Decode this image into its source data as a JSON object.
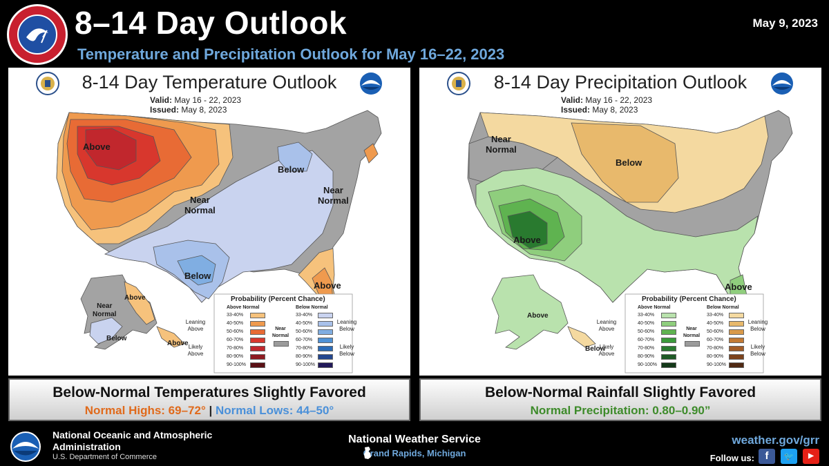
{
  "header": {
    "title": "8–14 Day Outlook",
    "subtitle": "Temperature and Precipitation Outlook for May 16–22, 2023",
    "date": "May 9, 2023",
    "logo_text": "NATIONAL WEATHER SERVICE"
  },
  "temp_map": {
    "title": "8-14 Day Temperature Outlook",
    "valid_label": "Valid:",
    "valid_value": "May 16 - 22, 2023",
    "issued_label": "Issued:",
    "issued_value": "May 8, 2023",
    "labels": {
      "above_west": "Above",
      "below_ne": "Below",
      "near_normal_center": "Near\nNormal",
      "near_normal_east": "Near\nNormal",
      "below_tx": "Below",
      "above_fl": "Above",
      "ak_above": "Above",
      "ak_near_normal": "Near\nNormal",
      "ak_below": "Below",
      "ak_above_se": "Above"
    },
    "legend": {
      "title": "Probability (Percent Chance)",
      "above_header": "Above Normal",
      "below_header": "Below Normal",
      "near_normal": "Near\nNormal",
      "leaning_above": "Leaning\nAbove",
      "likely_above": "Likely\nAbove",
      "leaning_below": "Leaning\nBelow",
      "likely_below": "Likely\nBelow",
      "ranges": [
        "33-40%",
        "40-50%",
        "50-60%",
        "60-70%",
        "70-80%",
        "80-90%",
        "90-100%"
      ],
      "above_colors": [
        "#f6c27c",
        "#ef9a4e",
        "#e86b35",
        "#d8372d",
        "#c1272d",
        "#8e1b21",
        "#5a1015"
      ],
      "below_colors": [
        "#c9d3ef",
        "#a9c1ea",
        "#80aee2",
        "#4f92d6",
        "#2b6cb8",
        "#24478f",
        "#221a5a"
      ],
      "near_color": "#9b9b9b"
    }
  },
  "precip_map": {
    "title": "8-14 Day Precipitation Outlook",
    "valid_label": "Valid:",
    "valid_value": "May 16 - 22, 2023",
    "issued_label": "Issued:",
    "issued_value": "May 8, 2023",
    "labels": {
      "near_normal_nw": "Near\nNormal",
      "below_north": "Below",
      "above_sw": "Above",
      "above_fl": "Above",
      "ak_above": "Above",
      "ak_below": "Below"
    },
    "legend": {
      "title": "Probability (Percent Chance)",
      "above_header": "Above Normal",
      "below_header": "Below Normal",
      "near_normal": "Near\nNormal",
      "leaning_above": "Leaning\nAbove",
      "likely_above": "Likely\nAbove",
      "leaning_below": "Leaning\nBelow",
      "likely_below": "Likely\nBelow",
      "ranges": [
        "33-40%",
        "40-50%",
        "50-60%",
        "60-70%",
        "70-80%",
        "80-90%",
        "90-100%"
      ],
      "above_colors": [
        "#b9e2ad",
        "#8fce7d",
        "#5fb350",
        "#3a9a3a",
        "#297a2f",
        "#1f5a26",
        "#14391a"
      ],
      "below_colors": [
        "#f4d9a0",
        "#e8b96c",
        "#d99a4a",
        "#c37a34",
        "#a35c26",
        "#7c421c",
        "#4f2913"
      ],
      "near_color": "#9b9b9b"
    }
  },
  "captions": {
    "temp_main": "Below-Normal Temperatures Slightly Favored",
    "temp_highs": "Normal Highs: 69–72°",
    "temp_sep": "|",
    "temp_lows": "Normal Lows: 44–50°",
    "precip_main": "Below-Normal Rainfall Slightly Favored",
    "precip_sub": "Normal Precipitation: 0.80–0.90”"
  },
  "footer": {
    "noaa_line1": "National Oceanic and Atmospheric",
    "noaa_line2": "Administration",
    "noaa_dept": "U.S. Department of Commerce",
    "nws_name": "National Weather Service",
    "office": "Grand Rapids, Michigan",
    "website": "weather.gov/grr",
    "follow": "Follow us:",
    "social_icons": [
      "facebook-icon",
      "twitter-icon",
      "youtube-icon"
    ]
  },
  "colors": {
    "accent_blue": "#6fa8dc",
    "high_orange": "#e06a1b",
    "low_blue": "#4a90d9",
    "precip_green": "#3d8b2a"
  }
}
